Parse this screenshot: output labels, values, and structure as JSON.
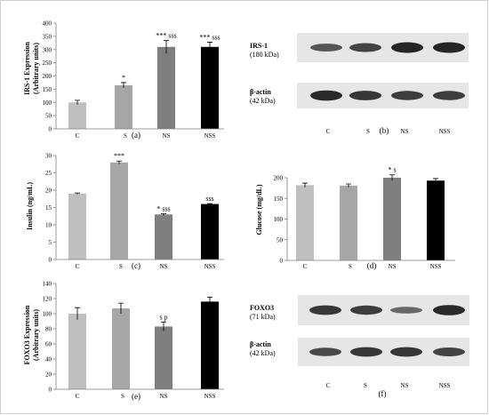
{
  "colors": {
    "C": "#bfbfbf",
    "S": "#a6a6a6",
    "NS": "#7f7f7f",
    "NSS": "#000000",
    "axis": "#7f7f7f",
    "blot_bg": "#e6e6e6",
    "band": "#1a1a1a"
  },
  "chart_data": [
    {
      "id": "a",
      "type": "bar",
      "panel_label": "(a)",
      "categories": [
        "C",
        "S",
        "NS",
        "NSS"
      ],
      "values": [
        100,
        165,
        310,
        310
      ],
      "errors": [
        8,
        10,
        25,
        18
      ],
      "annotations": [
        "",
        "*",
        "*** sss",
        "*** sss"
      ],
      "ylabel": "IRS-1 Expression\n(Arbitrary units)",
      "ylim": [
        0,
        400
      ],
      "yticks": [
        0,
        50,
        100,
        150,
        200,
        250,
        300,
        350,
        400
      ],
      "grid": false,
      "legend": "none"
    },
    {
      "id": "c",
      "type": "bar",
      "panel_label": "(c)",
      "categories": [
        "C",
        "S",
        "NS",
        "NSS"
      ],
      "values": [
        19,
        28,
        13,
        16
      ],
      "errors": [
        0.2,
        0.4,
        0.2,
        0.1
      ],
      "annotations": [
        "",
        "***",
        "* sss",
        "sss"
      ],
      "ylabel": "Insulin (ng/mL)",
      "ylim": [
        0,
        30
      ],
      "yticks": [
        0,
        5,
        10,
        15,
        20,
        25,
        30
      ],
      "grid": false,
      "legend": "none"
    },
    {
      "id": "d",
      "type": "bar",
      "panel_label": "(d)",
      "categories": [
        "C",
        "S",
        "NS",
        "NSS"
      ],
      "values": [
        182,
        181,
        200,
        193
      ],
      "errors": [
        5,
        4,
        7,
        5
      ],
      "annotations": [
        "",
        "",
        "* s",
        ""
      ],
      "ylabel": "Glucose (mg/dL)",
      "ylim": [
        0,
        200
      ],
      "yticks": [
        0,
        50,
        100,
        150,
        200
      ],
      "grid": false,
      "legend": "none"
    },
    {
      "id": "e",
      "type": "bar",
      "panel_label": "(e)",
      "categories": [
        "C",
        "S",
        "NS",
        "NSS"
      ],
      "values": [
        100,
        107,
        83,
        116
      ],
      "errors": [
        8,
        7,
        6,
        6
      ],
      "annotations": [
        "",
        "",
        "s p",
        ""
      ],
      "ylabel": "FOXO3 Expression\n(Arbitrary units)",
      "ylim": [
        0,
        140
      ],
      "yticks": [
        0,
        20,
        40,
        60,
        80,
        100,
        120,
        140
      ],
      "grid": false,
      "legend": "none"
    }
  ],
  "blots": [
    {
      "id": "b",
      "panel_label": "(b)",
      "categories": [
        "C",
        "S",
        "NS",
        "NSS"
      ],
      "rows": [
        {
          "name": "IRS-1",
          "size": "(180 kDa)",
          "intensity": [
            0.6,
            0.75,
            1.0,
            1.0
          ]
        },
        {
          "name": "β-actin",
          "size": "(42 kDa)",
          "intensity": [
            0.95,
            0.85,
            0.8,
            0.8
          ]
        }
      ]
    },
    {
      "id": "f",
      "panel_label": "(f)",
      "categories": [
        "C",
        "S",
        "NS",
        "NSS"
      ],
      "rows": [
        {
          "name": "FOXO3",
          "size": "(71 kDa)",
          "intensity": [
            0.85,
            0.8,
            0.45,
            0.95
          ]
        },
        {
          "name": "β-actin",
          "size": "(42 kDa)",
          "intensity": [
            0.7,
            0.85,
            0.85,
            0.75
          ]
        }
      ]
    }
  ]
}
